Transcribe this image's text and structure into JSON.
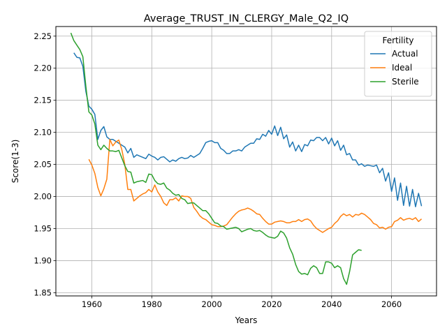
{
  "chart_data": {
    "type": "line",
    "title": "Average_TRUST_IN_CLERGY_Male_Q2_IQ",
    "xlabel": "Years",
    "ylabel": "Score(1-3)",
    "xlim": [
      1948,
      2075
    ],
    "ylim": [
      1.845,
      2.265
    ],
    "x_ticks": [
      1960,
      1980,
      2000,
      2020,
      2040,
      2060
    ],
    "y_ticks": [
      1.85,
      1.9,
      1.95,
      2.0,
      2.05,
      2.1,
      2.15,
      2.2,
      2.25
    ],
    "x_tick_labels": [
      "1960",
      "1980",
      "2000",
      "2020",
      "2040",
      "2060"
    ],
    "y_tick_labels": [
      "1.85",
      "1.90",
      "1.95",
      "2.00",
      "2.05",
      "2.10",
      "2.15",
      "2.20",
      "2.25"
    ],
    "grid": true,
    "legend": {
      "title": "Fertility",
      "position": "top-right"
    },
    "series": [
      {
        "name": "Actual",
        "color": "#1f77b4",
        "x": [
          1954,
          1955,
          1956,
          1957,
          1958,
          1959,
          1960,
          1961,
          1962,
          1963,
          1964,
          1965,
          1966,
          1967,
          1968,
          1969,
          1970,
          1971,
          1972,
          1973,
          1974,
          1975,
          1976,
          1977,
          1978,
          1979,
          1980,
          1981,
          1982,
          1983,
          1984,
          1985,
          1986,
          1987,
          1988,
          1989,
          1990,
          1991,
          1992,
          1993,
          1994,
          1995,
          1996,
          1997,
          1998,
          1999,
          2000,
          2001,
          2002,
          2003,
          2004,
          2005,
          2006,
          2007,
          2008,
          2009,
          2010,
          2011,
          2012,
          2013,
          2014,
          2015,
          2016,
          2017,
          2018,
          2019,
          2020,
          2021,
          2022,
          2023,
          2024,
          2025,
          2026,
          2027,
          2028,
          2029,
          2030,
          2031,
          2032,
          2033,
          2034,
          2035,
          2036,
          2037,
          2038,
          2039,
          2040,
          2041,
          2042,
          2043,
          2044,
          2045,
          2046,
          2047,
          2048,
          2049,
          2050,
          2051,
          2052,
          2053,
          2054,
          2055,
          2056,
          2057,
          2058,
          2059,
          2060,
          2061,
          2062,
          2063,
          2064,
          2065,
          2066,
          2067,
          2068,
          2069,
          2070
        ],
        "y": [
          2.224,
          2.217,
          2.216,
          2.203,
          2.164,
          2.141,
          2.136,
          2.128,
          2.089,
          2.103,
          2.109,
          2.093,
          2.089,
          2.089,
          2.086,
          2.083,
          2.08,
          2.077,
          2.068,
          2.075,
          2.061,
          2.065,
          2.063,
          2.061,
          2.059,
          2.066,
          2.063,
          2.061,
          2.057,
          2.061,
          2.062,
          2.058,
          2.054,
          2.057,
          2.055,
          2.059,
          2.061,
          2.059,
          2.06,
          2.064,
          2.061,
          2.064,
          2.067,
          2.075,
          2.084,
          2.086,
          2.087,
          2.084,
          2.084,
          2.075,
          2.072,
          2.067,
          2.067,
          2.071,
          2.071,
          2.073,
          2.071,
          2.077,
          2.08,
          2.083,
          2.083,
          2.09,
          2.089,
          2.097,
          2.094,
          2.103,
          2.097,
          2.11,
          2.095,
          2.108,
          2.09,
          2.096,
          2.077,
          2.085,
          2.071,
          2.08,
          2.07,
          2.081,
          2.079,
          2.088,
          2.087,
          2.092,
          2.092,
          2.087,
          2.092,
          2.082,
          2.091,
          2.079,
          2.087,
          2.072,
          2.08,
          2.065,
          2.067,
          2.057,
          2.057,
          2.049,
          2.051,
          2.047,
          2.049,
          2.048,
          2.047,
          2.049,
          2.037,
          2.044,
          2.024,
          2.037,
          2.008,
          2.029,
          1.994,
          2.021,
          1.986,
          2.016,
          1.985,
          2.011,
          1.984,
          2.005,
          1.985
        ]
      },
      {
        "name": "Ideal",
        "color": "#ff7f0e",
        "x": [
          1959,
          1960,
          1961,
          1962,
          1963,
          1964,
          1965,
          1966,
          1967,
          1968,
          1969,
          1970,
          1971,
          1972,
          1973,
          1974,
          1975,
          1976,
          1977,
          1978,
          1979,
          1980,
          1981,
          1982,
          1983,
          1984,
          1985,
          1986,
          1987,
          1988,
          1989,
          1990,
          1991,
          1992,
          1993,
          1994,
          1995,
          1996,
          1997,
          1998,
          1999,
          2000,
          2001,
          2002,
          2003,
          2004,
          2005,
          2006,
          2007,
          2008,
          2009,
          2010,
          2011,
          2012,
          2013,
          2014,
          2015,
          2016,
          2017,
          2018,
          2019,
          2020,
          2021,
          2022,
          2023,
          2024,
          2025,
          2026,
          2027,
          2028,
          2029,
          2030,
          2031,
          2032,
          2033,
          2034,
          2035,
          2036,
          2037,
          2038,
          2039,
          2040,
          2041,
          2042,
          2043,
          2044,
          2045,
          2046,
          2047,
          2048,
          2049,
          2050,
          2051,
          2052,
          2053,
          2054,
          2055,
          2056,
          2057,
          2058,
          2059,
          2060,
          2061,
          2062,
          2063,
          2064,
          2065,
          2066,
          2067,
          2068,
          2069,
          2070
        ],
        "y": [
          2.058,
          2.049,
          2.036,
          2.014,
          2.001,
          2.012,
          2.027,
          2.089,
          2.079,
          2.085,
          2.088,
          2.073,
          2.05,
          2.011,
          2.011,
          1.993,
          1.997,
          2.001,
          2.004,
          2.006,
          2.011,
          2.007,
          2.018,
          2.007,
          2.0,
          1.99,
          1.986,
          1.995,
          1.995,
          1.998,
          1.993,
          2.001,
          2.0,
          2.0,
          1.997,
          1.983,
          1.977,
          1.97,
          1.966,
          1.964,
          1.96,
          1.956,
          1.955,
          1.953,
          1.953,
          1.954,
          1.956,
          1.962,
          1.968,
          1.973,
          1.977,
          1.979,
          1.98,
          1.982,
          1.98,
          1.977,
          1.973,
          1.972,
          1.966,
          1.961,
          1.957,
          1.957,
          1.96,
          1.961,
          1.962,
          1.961,
          1.959,
          1.959,
          1.961,
          1.961,
          1.964,
          1.961,
          1.964,
          1.965,
          1.962,
          1.955,
          1.95,
          1.947,
          1.944,
          1.947,
          1.95,
          1.952,
          1.958,
          1.962,
          1.969,
          1.973,
          1.97,
          1.972,
          1.968,
          1.972,
          1.971,
          1.974,
          1.972,
          1.968,
          1.964,
          1.958,
          1.956,
          1.951,
          1.952,
          1.949,
          1.952,
          1.953,
          1.961,
          1.963,
          1.967,
          1.963,
          1.965,
          1.966,
          1.964,
          1.967,
          1.961,
          1.965
        ]
      },
      {
        "name": "Sterile",
        "color": "#2ca02c",
        "x": [
          1953,
          1954,
          1955,
          1956,
          1957,
          1958,
          1959,
          1960,
          1961,
          1962,
          1963,
          1964,
          1965,
          1966,
          1967,
          1968,
          1969,
          1970,
          1971,
          1972,
          1973,
          1974,
          1975,
          1976,
          1977,
          1978,
          1979,
          1980,
          1981,
          1982,
          1983,
          1984,
          1985,
          1986,
          1987,
          1988,
          1989,
          1990,
          1991,
          1992,
          1993,
          1994,
          1995,
          1996,
          1997,
          1998,
          1999,
          2000,
          2001,
          2002,
          2003,
          2004,
          2005,
          2006,
          2007,
          2008,
          2009,
          2010,
          2011,
          2012,
          2013,
          2014,
          2015,
          2016,
          2017,
          2018,
          2019,
          2020,
          2021,
          2022,
          2023,
          2024,
          2025,
          2026,
          2027,
          2028,
          2029,
          2030,
          2031,
          2032,
          2033,
          2034,
          2035,
          2036,
          2037,
          2038,
          2039,
          2040,
          2041,
          2042,
          2043,
          2044,
          2045,
          2046,
          2047,
          2048,
          2049,
          2050
        ],
        "y": [
          2.255,
          2.243,
          2.236,
          2.229,
          2.218,
          2.172,
          2.132,
          2.127,
          2.113,
          2.08,
          2.073,
          2.08,
          2.075,
          2.071,
          2.071,
          2.07,
          2.072,
          2.06,
          2.048,
          2.039,
          2.038,
          2.021,
          2.023,
          2.024,
          2.025,
          2.022,
          2.035,
          2.034,
          2.025,
          2.02,
          2.019,
          2.021,
          2.013,
          2.01,
          2.005,
          2.002,
          2.003,
          1.997,
          1.995,
          1.989,
          1.99,
          1.99,
          1.986,
          1.982,
          1.978,
          1.978,
          1.973,
          1.966,
          1.959,
          1.958,
          1.954,
          1.953,
          1.949,
          1.95,
          1.951,
          1.952,
          1.95,
          1.945,
          1.947,
          1.949,
          1.95,
          1.947,
          1.946,
          1.947,
          1.944,
          1.94,
          1.937,
          1.936,
          1.935,
          1.938,
          1.946,
          1.943,
          1.935,
          1.92,
          1.91,
          1.894,
          1.883,
          1.879,
          1.88,
          1.878,
          1.888,
          1.892,
          1.889,
          1.88,
          1.88,
          1.898,
          1.898,
          1.896,
          1.889,
          1.892,
          1.889,
          1.872,
          1.863,
          1.883,
          1.909,
          1.913,
          1.917,
          1.916
        ]
      }
    ]
  }
}
